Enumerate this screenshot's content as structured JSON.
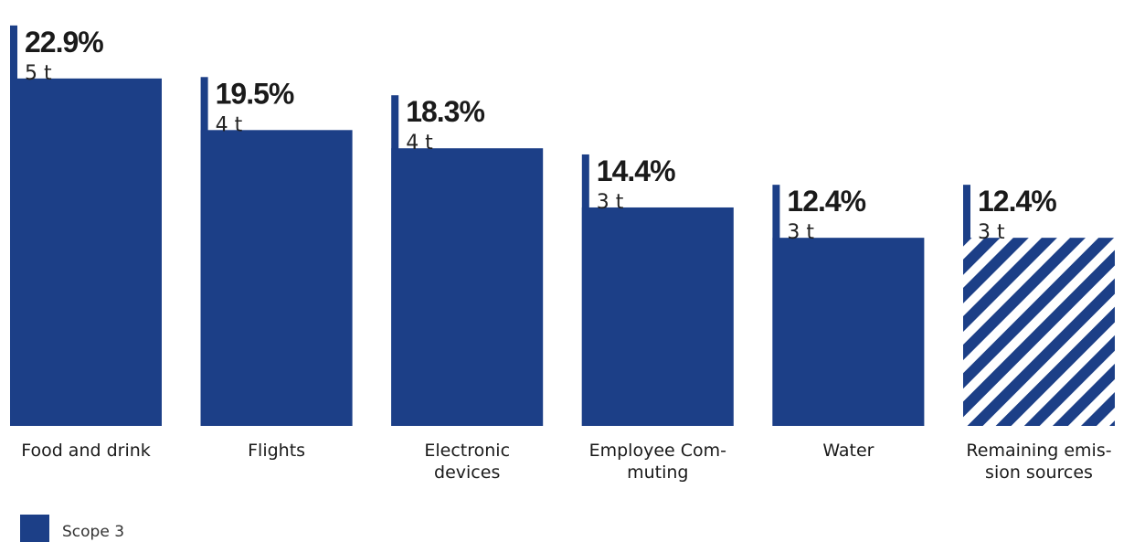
{
  "chart_data": {
    "type": "bar",
    "categories": [
      [
        "Food and drink"
      ],
      [
        "Flights"
      ],
      [
        "Electronic",
        "devices"
      ],
      [
        "Employee Com-",
        "muting"
      ],
      [
        "Water"
      ],
      [
        "Remaining emis-",
        "sion sources"
      ]
    ],
    "percent_values": [
      22.9,
      19.5,
      18.3,
      14.4,
      12.4,
      12.4
    ],
    "percent_labels": [
      "22.9%",
      "19.5%",
      "18.3%",
      "14.4%",
      "12.4%",
      "12.4%"
    ],
    "tonnes_labels": [
      "5 t",
      "4 t",
      "4 t",
      "3 t",
      "3 t",
      "3 t"
    ],
    "hatched": [
      false,
      false,
      false,
      false,
      false,
      true
    ],
    "series": [
      {
        "name": "Scope 3",
        "values": [
          22.9,
          19.5,
          18.3,
          14.4,
          12.4,
          12.4
        ]
      }
    ],
    "legend": {
      "label": "Scope 3",
      "placement": "bottom-left"
    },
    "colors": {
      "bar": "#1c3f87",
      "background": "#ffffff"
    },
    "grid": false
  }
}
